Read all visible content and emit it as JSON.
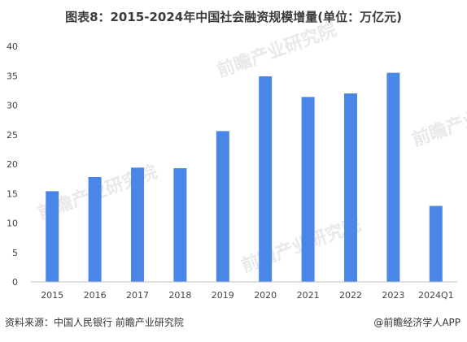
{
  "chart_data": {
    "type": "bar",
    "title": "图表8：2015-2024年中国社会融资规模增量(单位：万亿元)",
    "categories": [
      "2015",
      "2016",
      "2017",
      "2018",
      "2019",
      "2020",
      "2021",
      "2022",
      "2023",
      "2024Q1"
    ],
    "values": [
      15.4,
      17.8,
      19.4,
      19.3,
      25.6,
      34.9,
      31.4,
      32.0,
      35.5,
      12.9
    ],
    "ylim": [
      0,
      40
    ],
    "yticks": [
      0,
      5,
      10,
      15,
      20,
      25,
      30,
      35,
      40
    ],
    "grid": false,
    "bar_color": "#4a86e8"
  },
  "footer": {
    "source": "资料来源：中国人民银行 前瞻产业研究院",
    "brand": "@前瞻经济学人APP"
  },
  "watermark": "前瞻产业研究院"
}
